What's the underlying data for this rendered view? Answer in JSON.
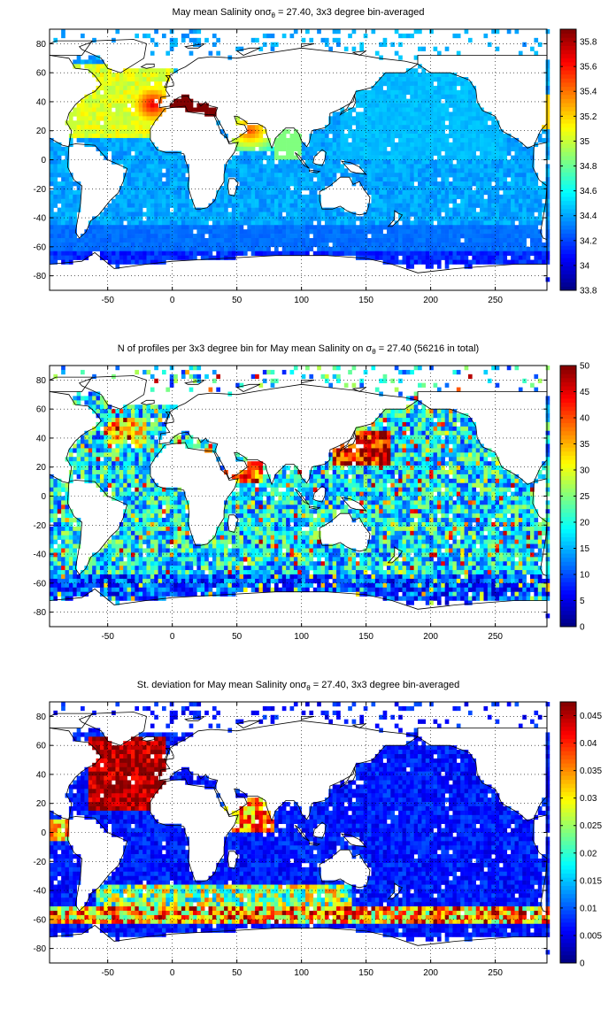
{
  "chart_data": [
    {
      "type": "heatmap",
      "title_parts": [
        "May mean Salinity on",
        "σ",
        "θ",
        " = 27.40, 3x3 degree bin-averaged"
      ],
      "xlabel": "",
      "ylabel": "",
      "xlim": [
        -95,
        290
      ],
      "ylim": [
        -90,
        90
      ],
      "xticks": [
        -50,
        0,
        50,
        100,
        150,
        200,
        250
      ],
      "yticks": [
        80,
        60,
        40,
        20,
        0,
        -20,
        -40,
        -60,
        -80
      ],
      "colorbar": {
        "min": 33.8,
        "max": 35.9,
        "ticks": [
          35.8,
          35.6,
          35.4,
          35.2,
          35,
          34.8,
          34.6,
          34.4,
          34.2,
          34,
          33.8
        ]
      },
      "grid": true,
      "colormap": "jet",
      "field": "mean_salinity"
    },
    {
      "type": "heatmap",
      "title_parts": [
        "N of profiles per 3x3 degree bin for May mean Salinity on ",
        "σ",
        "θ",
        " = 27.40 (56216 in total)"
      ],
      "xlabel": "",
      "ylabel": "",
      "xlim": [
        -95,
        290
      ],
      "ylim": [
        -90,
        90
      ],
      "xticks": [
        -50,
        0,
        50,
        100,
        150,
        200,
        250
      ],
      "yticks": [
        80,
        60,
        40,
        20,
        0,
        -20,
        -40,
        -60,
        -80
      ],
      "colorbar": {
        "min": 0,
        "max": 50,
        "ticks": [
          50,
          45,
          40,
          35,
          30,
          25,
          20,
          15,
          10,
          5,
          0
        ]
      },
      "grid": true,
      "colormap": "jet",
      "field": "profile_count"
    },
    {
      "type": "heatmap",
      "title_parts": [
        "St. deviation for May mean Salinity on",
        "σ",
        "θ",
        " = 27.40, 3x3 degree bin-averaged"
      ],
      "xlabel": "",
      "ylabel": "",
      "xlim": [
        -95,
        290
      ],
      "ylim": [
        -90,
        90
      ],
      "xticks": [
        -50,
        0,
        50,
        100,
        150,
        200,
        250
      ],
      "yticks": [
        80,
        60,
        40,
        20,
        0,
        -20,
        -40,
        -60,
        -80
      ],
      "colorbar": {
        "min": 0,
        "max": 0.0475,
        "ticks": [
          0.045,
          0.04,
          0.035,
          0.03,
          0.025,
          0.02,
          0.015,
          0.01,
          0.005,
          0
        ]
      },
      "grid": true,
      "colormap": "jet",
      "field": "salinity_std"
    }
  ]
}
